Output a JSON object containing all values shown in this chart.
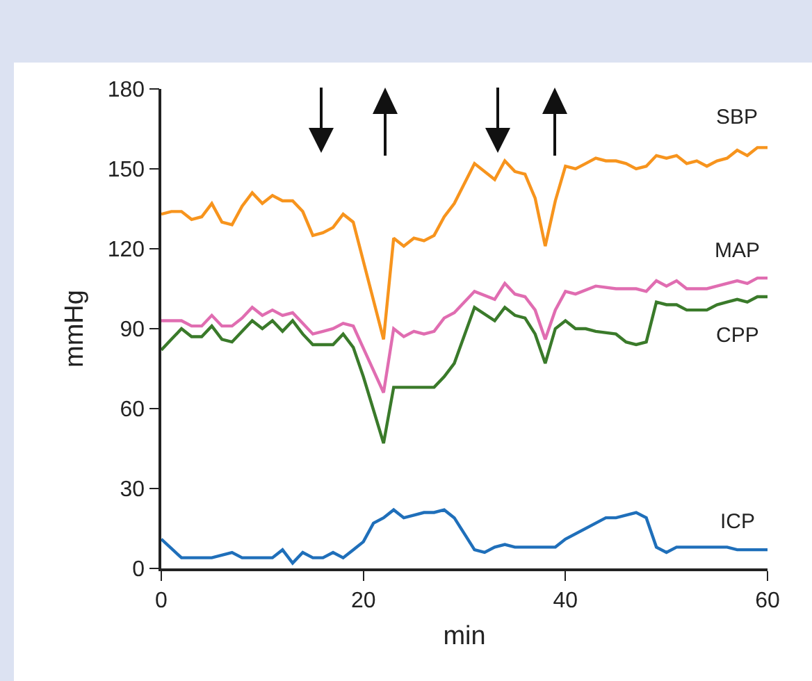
{
  "chart_data": {
    "type": "line",
    "xlabel": "min",
    "ylabel": "mmHg",
    "xlim": [
      0,
      60
    ],
    "xticks": [
      0,
      20,
      40,
      60
    ],
    "ylim": [
      0,
      180
    ],
    "yticks": [
      0,
      30,
      60,
      90,
      120,
      150,
      180
    ],
    "grid": false,
    "legend": false,
    "marker": "none",
    "line_style": "solid",
    "series": [
      {
        "name": "SBP",
        "color": "#f7941d",
        "x": [
          0,
          1,
          2,
          3,
          4,
          5,
          6,
          7,
          8,
          9,
          10,
          11,
          12,
          13,
          14,
          15,
          16,
          17,
          18,
          19,
          22,
          23,
          24,
          25,
          26,
          27,
          28,
          29,
          31,
          33,
          34,
          35,
          36,
          37,
          38,
          39,
          40,
          41,
          42,
          43,
          44,
          45,
          46,
          47,
          48,
          49,
          50,
          51,
          52,
          53,
          54,
          55,
          56,
          57,
          58,
          59,
          60
        ],
        "values": [
          133,
          134,
          134,
          131,
          132,
          137,
          130,
          129,
          136,
          141,
          137,
          140,
          138,
          138,
          134,
          125,
          126,
          128,
          133,
          130,
          86,
          124,
          121,
          124,
          123,
          125,
          132,
          137,
          152,
          146,
          153,
          149,
          148,
          139,
          121,
          138,
          151,
          150,
          152,
          154,
          153,
          153,
          152,
          150,
          151,
          155,
          154,
          155,
          152,
          153,
          151,
          153,
          154,
          157,
          155,
          158,
          158
        ]
      },
      {
        "name": "MAP",
        "color": "#e06db1",
        "x": [
          0,
          2,
          3,
          4,
          5,
          6,
          7,
          8,
          9,
          10,
          11,
          12,
          13,
          14,
          15,
          16,
          17,
          18,
          19,
          22,
          23,
          24,
          25,
          26,
          27,
          28,
          29,
          31,
          33,
          34,
          35,
          36,
          37,
          38,
          39,
          40,
          41,
          43,
          45,
          47,
          48,
          49,
          50,
          51,
          52,
          54,
          55,
          57,
          58,
          59,
          60
        ],
        "values": [
          93,
          93,
          91,
          91,
          95,
          91,
          91,
          94,
          98,
          95,
          97,
          95,
          96,
          92,
          88,
          89,
          90,
          92,
          91,
          66,
          90,
          87,
          89,
          88,
          89,
          94,
          96,
          104,
          101,
          107,
          103,
          102,
          97,
          86,
          97,
          104,
          103,
          106,
          105,
          105,
          104,
          108,
          106,
          108,
          105,
          105,
          106,
          108,
          107,
          109,
          109
        ]
      },
      {
        "name": "CPP",
        "color": "#3a7a2a",
        "x": [
          0,
          1,
          2,
          3,
          4,
          5,
          6,
          7,
          8,
          9,
          10,
          11,
          12,
          13,
          14,
          15,
          17,
          18,
          19,
          20,
          22,
          23,
          27,
          28,
          29,
          31,
          33,
          34,
          35,
          36,
          37,
          38,
          39,
          40,
          41,
          42,
          43,
          45,
          46,
          47,
          48,
          49,
          50,
          51,
          52,
          54,
          55,
          56,
          57,
          58,
          59,
          60
        ],
        "values": [
          82,
          86,
          90,
          87,
          87,
          91,
          86,
          85,
          89,
          93,
          90,
          93,
          89,
          93,
          88,
          84,
          84,
          88,
          83,
          72,
          47,
          68,
          68,
          72,
          77,
          98,
          93,
          98,
          95,
          94,
          88,
          77,
          90,
          93,
          90,
          90,
          89,
          88,
          85,
          84,
          85,
          100,
          99,
          99,
          97,
          97,
          99,
          100,
          101,
          100,
          102,
          102
        ]
      },
      {
        "name": "ICP",
        "color": "#1f6fba",
        "x": [
          0,
          2,
          3,
          4,
          5,
          7,
          8,
          11,
          12,
          13,
          14,
          15,
          16,
          17,
          18,
          19,
          20,
          21,
          22,
          23,
          24,
          25,
          26,
          27,
          28,
          29,
          30,
          31,
          32,
          33,
          34,
          35,
          39,
          40,
          44,
          45,
          47,
          48,
          49,
          50,
          51,
          56,
          57,
          60
        ],
        "values": [
          11,
          4,
          4,
          4,
          4,
          6,
          4,
          4,
          7,
          2,
          6,
          4,
          4,
          6,
          4,
          7,
          10,
          17,
          19,
          22,
          19,
          20,
          21,
          21,
          22,
          19,
          13,
          7,
          6,
          8,
          9,
          8,
          8,
          11,
          19,
          19,
          21,
          19,
          8,
          6,
          8,
          8,
          7,
          7
        ]
      }
    ]
  }
}
